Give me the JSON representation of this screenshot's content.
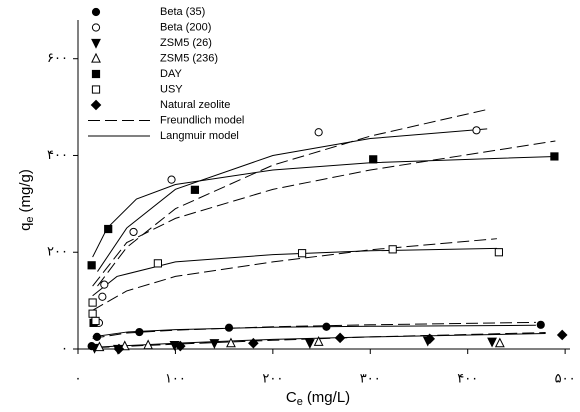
{
  "chart_data": {
    "type": "scatter",
    "ylabel_main": "q",
    "ylabel_sub": "e",
    "ylabel_unit": "(mg/g)",
    "xlabel_main": "C",
    "xlabel_sub": "e",
    "xlabel_unit": "(mg/L)",
    "xlim": [
      0,
      505
    ],
    "ylim": [
      0,
      680
    ],
    "xticks": [
      {
        "value": 0,
        "label": "۰"
      },
      {
        "value": 100,
        "label": "۱۰۰"
      },
      {
        "value": 200,
        "label": "۲۰۰"
      },
      {
        "value": 300,
        "label": "۳۰۰"
      },
      {
        "value": 400,
        "label": "۴۰۰"
      },
      {
        "value": 500,
        "label": "۵۰۰"
      }
    ],
    "yticks": [
      {
        "value": 0,
        "label": "۰"
      },
      {
        "value": 200,
        "label": "۲۰۰"
      },
      {
        "value": 400,
        "label": "۴۰۰"
      },
      {
        "value": 600,
        "label": "۶۰۰"
      }
    ],
    "series": [
      {
        "name": "Beta (35)",
        "marker": "circle",
        "filled": true,
        "color": "#000000",
        "x": [
          14,
          19.5,
          63,
          155,
          255,
          475
        ],
        "values": [
          6,
          25,
          35,
          44,
          46,
          50
        ]
      },
      {
        "name": "Beta (200)",
        "marker": "circle",
        "filled": false,
        "color": "#000000",
        "x": [
          21.5,
          25,
          27,
          57,
          96,
          247,
          409
        ],
        "values": [
          54,
          108,
          133,
          242,
          350,
          448,
          452
        ]
      },
      {
        "name": "ZSM5 (26)",
        "marker": "triangle-down",
        "filled": true,
        "color": "#000000",
        "x": [
          17,
          41,
          99,
          140,
          238,
          359,
          425
        ],
        "values": [
          2,
          0,
          8,
          12,
          12,
          17,
          15
        ]
      },
      {
        "name": "ZSM5 (236)",
        "marker": "triangle-up",
        "filled": false,
        "color": "#000000",
        "x": [
          22,
          48,
          72,
          157,
          247,
          433
        ],
        "values": [
          4,
          6,
          8,
          12,
          15,
          12
        ]
      },
      {
        "name": "DAY",
        "marker": "square",
        "filled": true,
        "color": "#000000",
        "x": [
          14,
          16,
          31,
          120,
          303,
          489
        ],
        "values": [
          173,
          54,
          248,
          329,
          392,
          398
        ]
      },
      {
        "name": "USY",
        "marker": "square",
        "filled": false,
        "color": "#000000",
        "x": [
          15,
          15,
          18,
          82,
          230,
          323,
          432
        ],
        "values": [
          96,
          73,
          58,
          177,
          198,
          206,
          200
        ]
      },
      {
        "name": "Natural zeolite",
        "marker": "diamond",
        "filled": true,
        "color": "#000000",
        "x": [
          42,
          105,
          180,
          269,
          361,
          497
        ],
        "values": [
          0,
          6,
          12,
          23,
          21,
          29
        ]
      }
    ],
    "curves": [
      {
        "name": "Freundlich model",
        "dashed": true,
        "color": "#000000",
        "lines": [
          {
            "x": [
              20,
              50,
              100,
              200,
              300,
              420
            ],
            "values": [
              130,
              210,
              290,
              380,
              440,
              495
            ]
          },
          {
            "x": [
              15,
              50,
              100,
              200,
              300,
              490
            ],
            "values": [
              130,
              220,
              270,
              330,
              370,
              430
            ]
          },
          {
            "x": [
              15,
              50,
              100,
              200,
              300,
              430
            ],
            "values": [
              80,
              120,
              150,
              180,
              205,
              228
            ]
          },
          {
            "x": [
              15,
              50,
              100,
              200,
              300,
              470
            ],
            "values": [
              22,
              33,
              39,
              46,
              50,
              55
            ]
          },
          {
            "x": [
              20,
              100,
              200,
              300,
              480
            ],
            "values": [
              3,
              10,
              18,
              25,
              34
            ]
          }
        ]
      },
      {
        "name": "Langmuir model",
        "dashed": false,
        "color": "#000000",
        "lines": [
          {
            "x": [
              20,
              50,
              100,
              200,
              300,
              420
            ],
            "values": [
              160,
              250,
              330,
              400,
              435,
              455
            ]
          },
          {
            "x": [
              15,
              30,
              60,
              100,
              200,
              300,
              490
            ],
            "values": [
              190,
              250,
              310,
              340,
              370,
              385,
              398
            ]
          },
          {
            "x": [
              15,
              40,
              100,
              200,
              300,
              430
            ],
            "values": [
              110,
              150,
              180,
              195,
              203,
              208
            ]
          },
          {
            "x": [
              15,
              50,
              100,
              200,
              300,
              470
            ],
            "values": [
              25,
              35,
              40,
              45,
              47,
              49
            ]
          },
          {
            "x": [
              20,
              100,
              200,
              300,
              480
            ],
            "values": [
              4,
              12,
              20,
              25,
              32
            ]
          }
        ]
      }
    ]
  }
}
